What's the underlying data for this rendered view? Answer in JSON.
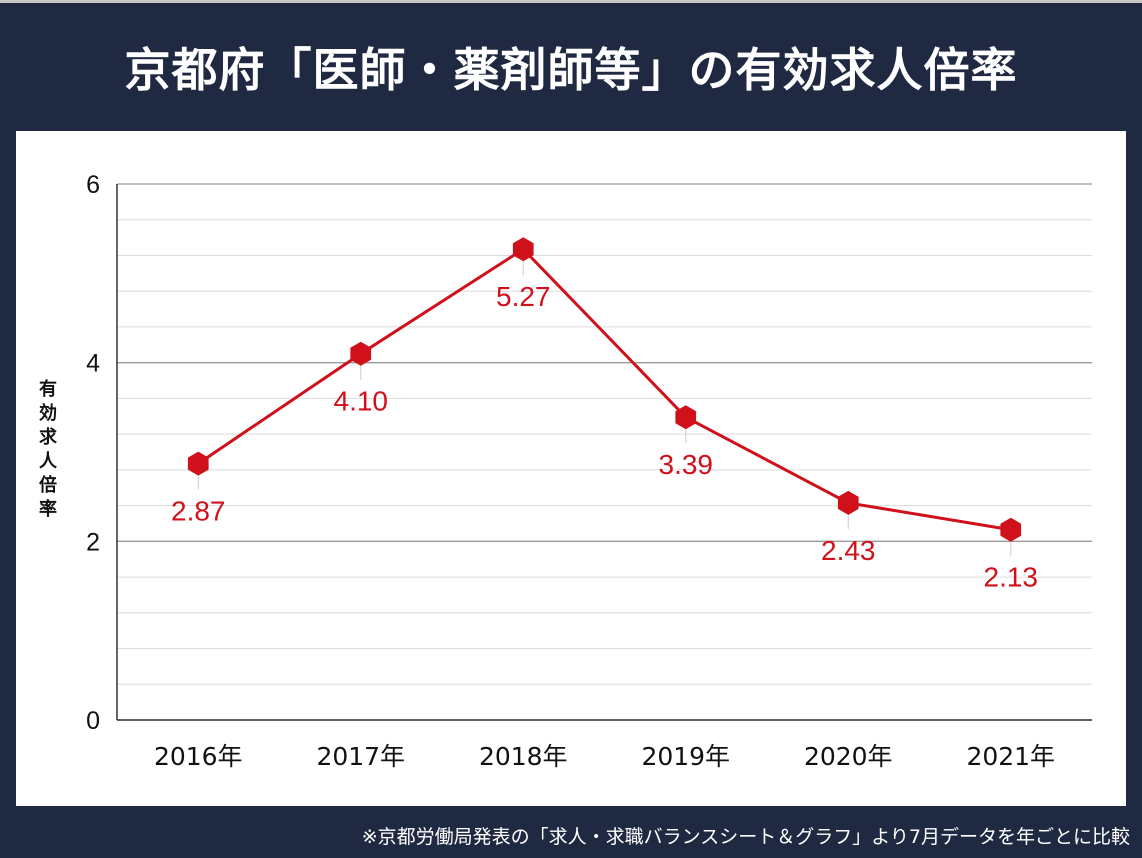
{
  "title": "京都府「医師・薬剤師等」の有効求人倍率",
  "footer": "※京都労働局発表の「求人・求職バランスシート＆グラフ」より7月データを年ごとに比較",
  "colors": {
    "background": "#1f2a42",
    "series": "#d0101b",
    "panel": "#ffffff"
  },
  "chart_data": {
    "type": "line",
    "title": "",
    "xlabel": "",
    "ylabel": "有効求人倍率",
    "categories": [
      "2016年",
      "2017年",
      "2018年",
      "2019年",
      "2020年",
      "2021年"
    ],
    "values": [
      2.87,
      4.1,
      5.27,
      3.39,
      2.43,
      2.13
    ],
    "data_labels": [
      "2.87",
      "4.10",
      "5.27",
      "3.39",
      "2.43",
      "2.13"
    ],
    "ylim": [
      0,
      6
    ],
    "yticks": [
      "0",
      "2",
      "4",
      "6"
    ],
    "minor_grid_step": 0.4,
    "grid": true,
    "marker": "hexagon"
  }
}
